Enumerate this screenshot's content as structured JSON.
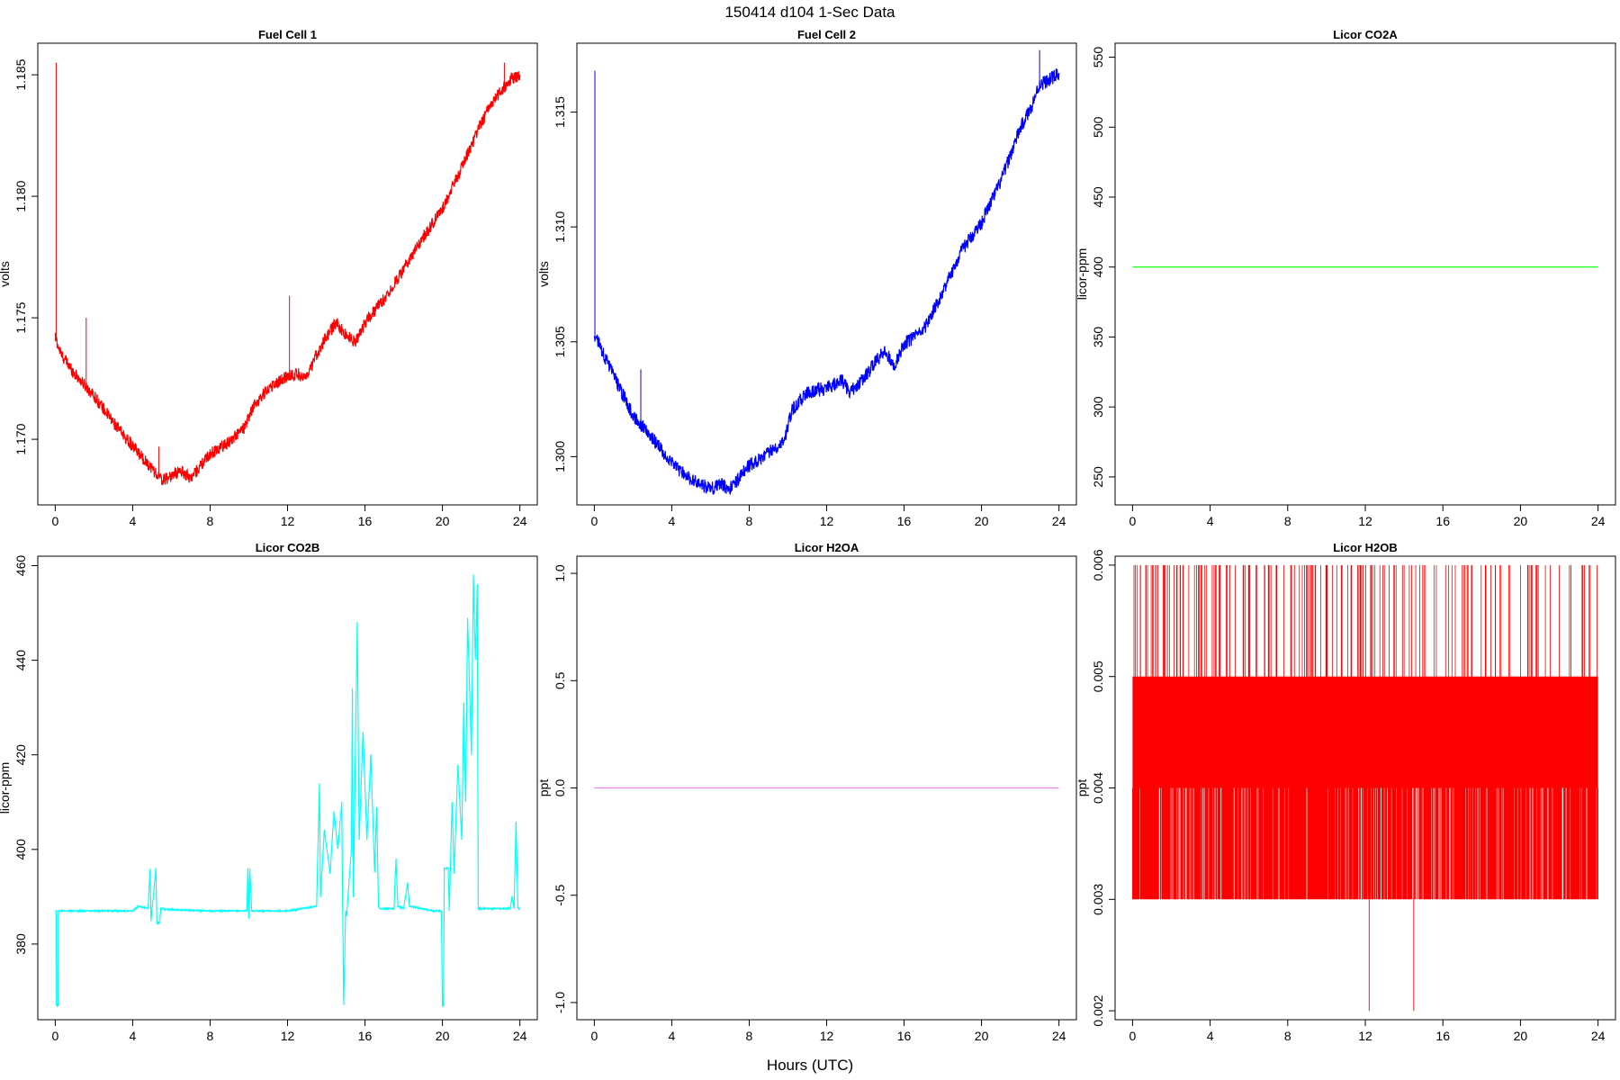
{
  "figure": {
    "title": "150414   d104   1-Sec Data",
    "xlabel": "Hours (UTC)"
  },
  "chart_data": [
    {
      "type": "line",
      "title": "Fuel Cell 1",
      "xlabel": "",
      "ylabel": "volts",
      "color": "#ff0000",
      "xlim": [
        -0.9,
        24.9
      ],
      "ylim": [
        1.1673,
        1.1863
      ],
      "xticks": [
        0,
        4,
        8,
        12,
        16,
        20,
        24
      ],
      "yticks": [
        1.17,
        1.175,
        1.18,
        1.185
      ],
      "ytick_labels": [
        "1.170",
        "1.175",
        "1.180",
        "1.185"
      ],
      "noise": 0.00025,
      "series": [
        {
          "x": [
            0,
            0.3,
            1,
            2,
            3,
            4,
            5,
            5.5,
            6,
            6.5,
            7,
            8,
            9,
            9.8,
            10.2,
            11,
            12,
            12.5,
            13,
            13.5,
            14,
            14.5,
            15,
            15.5,
            16,
            16.5,
            17,
            18,
            19,
            20,
            21,
            22,
            22.5,
            23,
            23.5,
            24
          ],
          "y": [
            1.1742,
            1.1735,
            1.1727,
            1.1718,
            1.1707,
            1.1697,
            1.1688,
            1.1683,
            1.1685,
            1.1687,
            1.1684,
            1.1694,
            1.1699,
            1.1705,
            1.1713,
            1.1721,
            1.1726,
            1.1727,
            1.1725,
            1.1735,
            1.1742,
            1.1748,
            1.1743,
            1.174,
            1.1748,
            1.1753,
            1.1758,
            1.177,
            1.1783,
            1.1795,
            1.1812,
            1.183,
            1.1838,
            1.1843,
            1.1848,
            1.185
          ]
        }
      ],
      "spikes": [
        {
          "x": 0.05,
          "y": 1.1855
        },
        {
          "x": 1.6,
          "y": 1.175
        },
        {
          "x": 5.35,
          "y": 1.1697
        },
        {
          "x": 12.1,
          "y": 1.1759
        },
        {
          "x": 22.1,
          "y": 1.1833
        },
        {
          "x": 23.2,
          "y": 1.1855
        }
      ]
    },
    {
      "type": "line",
      "title": "Fuel Cell 2",
      "xlabel": "",
      "ylabel": "volts",
      "color": "#0000ff",
      "xlim": [
        -0.9,
        24.9
      ],
      "ylim": [
        1.2979,
        1.318
      ],
      "xticks": [
        0,
        4,
        8,
        12,
        16,
        20,
        24
      ],
      "yticks": [
        1.3,
        1.305,
        1.31,
        1.315
      ],
      "ytick_labels": [
        "1.300",
        "1.305",
        "1.310",
        "1.315"
      ],
      "noise": 0.0003,
      "series": [
        {
          "x": [
            0,
            0.3,
            1,
            2,
            3,
            4,
            5,
            6,
            6.5,
            7,
            8,
            9,
            9.8,
            10.2,
            11,
            12,
            12.8,
            13.2,
            14,
            14.5,
            15,
            15.5,
            16,
            17,
            18,
            19,
            20,
            21,
            22,
            22.5,
            23,
            23.5,
            24
          ],
          "y": [
            1.3053,
            1.3048,
            1.3035,
            1.3018,
            1.3008,
            1.2997,
            1.299,
            1.2986,
            1.2988,
            1.2986,
            1.2996,
            1.3002,
            1.3007,
            1.302,
            1.3028,
            1.303,
            1.3033,
            1.3028,
            1.3035,
            1.3041,
            1.3046,
            1.304,
            1.3049,
            1.3055,
            1.3072,
            1.309,
            1.3102,
            1.312,
            1.3143,
            1.3151,
            1.3162,
            1.3164,
            1.3167
          ]
        }
      ],
      "spikes": [
        {
          "x": 0.03,
          "y": 1.3168
        },
        {
          "x": 2.4,
          "y": 1.3038
        },
        {
          "x": 23.0,
          "y": 1.3177
        }
      ]
    },
    {
      "type": "line",
      "title": "Licor CO2A",
      "xlabel": "",
      "ylabel": "licor-ppm",
      "color": "#00ff00",
      "xlim": [
        -0.9,
        24.9
      ],
      "ylim": [
        230,
        560
      ],
      "xticks": [
        0,
        4,
        8,
        12,
        16,
        20,
        24
      ],
      "yticks": [
        250,
        300,
        350,
        400,
        450,
        500,
        550
      ],
      "ytick_labels": [
        "250",
        "300",
        "350",
        "400",
        "450",
        "500",
        "550"
      ],
      "noise": 0,
      "series": [
        {
          "x": [
            0,
            24
          ],
          "y": [
            400,
            400
          ]
        }
      ]
    },
    {
      "type": "line",
      "title": "Licor CO2B",
      "xlabel": "",
      "ylabel": "licor-ppm",
      "color": "#00ffff",
      "xlim": [
        -0.9,
        24.9
      ],
      "ylim": [
        364,
        462
      ],
      "xticks": [
        0,
        4,
        8,
        12,
        16,
        20,
        24
      ],
      "yticks": [
        380,
        400,
        420,
        440,
        460
      ],
      "ytick_labels": [
        "380",
        "400",
        "420",
        "440",
        "460"
      ],
      "noise": 0.15,
      "series": [
        {
          "x": [
            0,
            0.05,
            0.06,
            0.15,
            0.16,
            4.0,
            4.3,
            4.8,
            4.9,
            4.95,
            5.2,
            5.25,
            5.4,
            5.45,
            5.6,
            5.65,
            8,
            9.9,
            9.95,
            10.0,
            10.05,
            10.15,
            10.2,
            12,
            13.5,
            13.65,
            13.7,
            13.9,
            14.2,
            14.4,
            14.6,
            14.8,
            14.85,
            14.9,
            15.0,
            15.05,
            15.3,
            15.35,
            15.4,
            15.6,
            15.7,
            15.9,
            16.1,
            16.3,
            16.5,
            16.6,
            16.7,
            16.75,
            17.5,
            17.6,
            17.7,
            18.0,
            18.2,
            18.3,
            19.5,
            19.95,
            20.0,
            20.05,
            20.1,
            20.3,
            20.35,
            20.5,
            20.6,
            20.8,
            21.0,
            21.1,
            21.2,
            21.3,
            21.5,
            21.6,
            21.7,
            21.8,
            21.85,
            22.0,
            23.5,
            23.6,
            23.7,
            23.8,
            23.9,
            24.0
          ],
          "y": [
            387,
            387,
            367,
            367,
            387,
            387,
            388,
            387.5,
            396,
            385,
            396,
            384.5,
            384.5,
            387.5,
            387.5,
            387.3,
            387,
            387,
            396,
            385.5,
            396,
            387,
            387,
            387,
            388,
            414,
            390,
            404,
            395,
            408,
            400,
            410,
            387,
            367,
            387,
            386,
            400,
            434,
            390,
            448,
            402,
            425,
            402,
            420,
            395,
            409,
            388,
            387.5,
            387.5,
            398,
            388,
            387.5,
            393,
            388,
            387,
            387,
            367,
            367,
            396,
            396,
            387,
            410,
            395,
            418,
            402,
            431,
            410,
            449,
            420,
            458,
            440,
            456,
            387.5,
            387.5,
            387.5,
            390,
            387.5,
            406,
            387.5,
            387.5
          ]
        }
      ]
    },
    {
      "type": "line",
      "title": "Licor H2OA",
      "xlabel": "",
      "ylabel": "ppt",
      "color": "#ee82ee",
      "xlim": [
        -0.9,
        24.9
      ],
      "ylim": [
        -1.08,
        1.08
      ],
      "xticks": [
        0,
        4,
        8,
        12,
        16,
        20,
        24
      ],
      "yticks": [
        -1.0,
        -0.5,
        0.0,
        0.5,
        1.0
      ],
      "ytick_labels": [
        "-1.0",
        "-0.5",
        "0.0",
        "0.5",
        "1.0"
      ],
      "noise": 0,
      "series": [
        {
          "x": [
            0,
            24
          ],
          "y": [
            0,
            0
          ]
        }
      ]
    },
    {
      "type": "line",
      "title": "Licor H2OB",
      "xlabel": "",
      "ylabel": "ppt",
      "color": "#ff0000",
      "xlim": [
        -0.9,
        24.9
      ],
      "ylim": [
        0.00192,
        0.00608
      ],
      "xticks": [
        0,
        4,
        8,
        12,
        16,
        20,
        24
      ],
      "yticks": [
        0.002,
        0.003,
        0.004,
        0.005,
        0.006
      ],
      "ytick_labels": [
        "0.002",
        "0.003",
        "0.004",
        "0.005",
        "0.006"
      ],
      "noise": 0,
      "series": [
        {
          "x": [
            0,
            24
          ],
          "y": [
            0.004,
            0.005
          ],
          "style": "band"
        }
      ],
      "band_low_extent": 0.003,
      "band_high_extent": 0.006,
      "spikes_up_x": [
        0.4,
        0.7,
        1.2,
        1.6,
        1.9,
        2.3,
        2.6,
        2.9,
        3.4,
        3.8,
        4.2,
        4.5,
        5.0,
        5.3,
        5.7,
        6.0,
        6.4,
        6.8,
        7.0,
        7.4,
        7.8,
        8.2,
        8.6,
        9.0,
        9.3,
        9.7,
        10.0,
        10.3,
        10.8,
        11.3,
        11.8,
        12.3,
        12.9,
        13.5,
        14.0,
        14.6,
        15.1,
        16.3,
        17.0,
        17.3,
        18.7,
        19.0,
        19.4,
        20.0,
        20.4,
        20.8,
        22.0,
        22.6,
        23.3
      ],
      "spikes_down_x": [
        12.2,
        14.5
      ]
    }
  ]
}
